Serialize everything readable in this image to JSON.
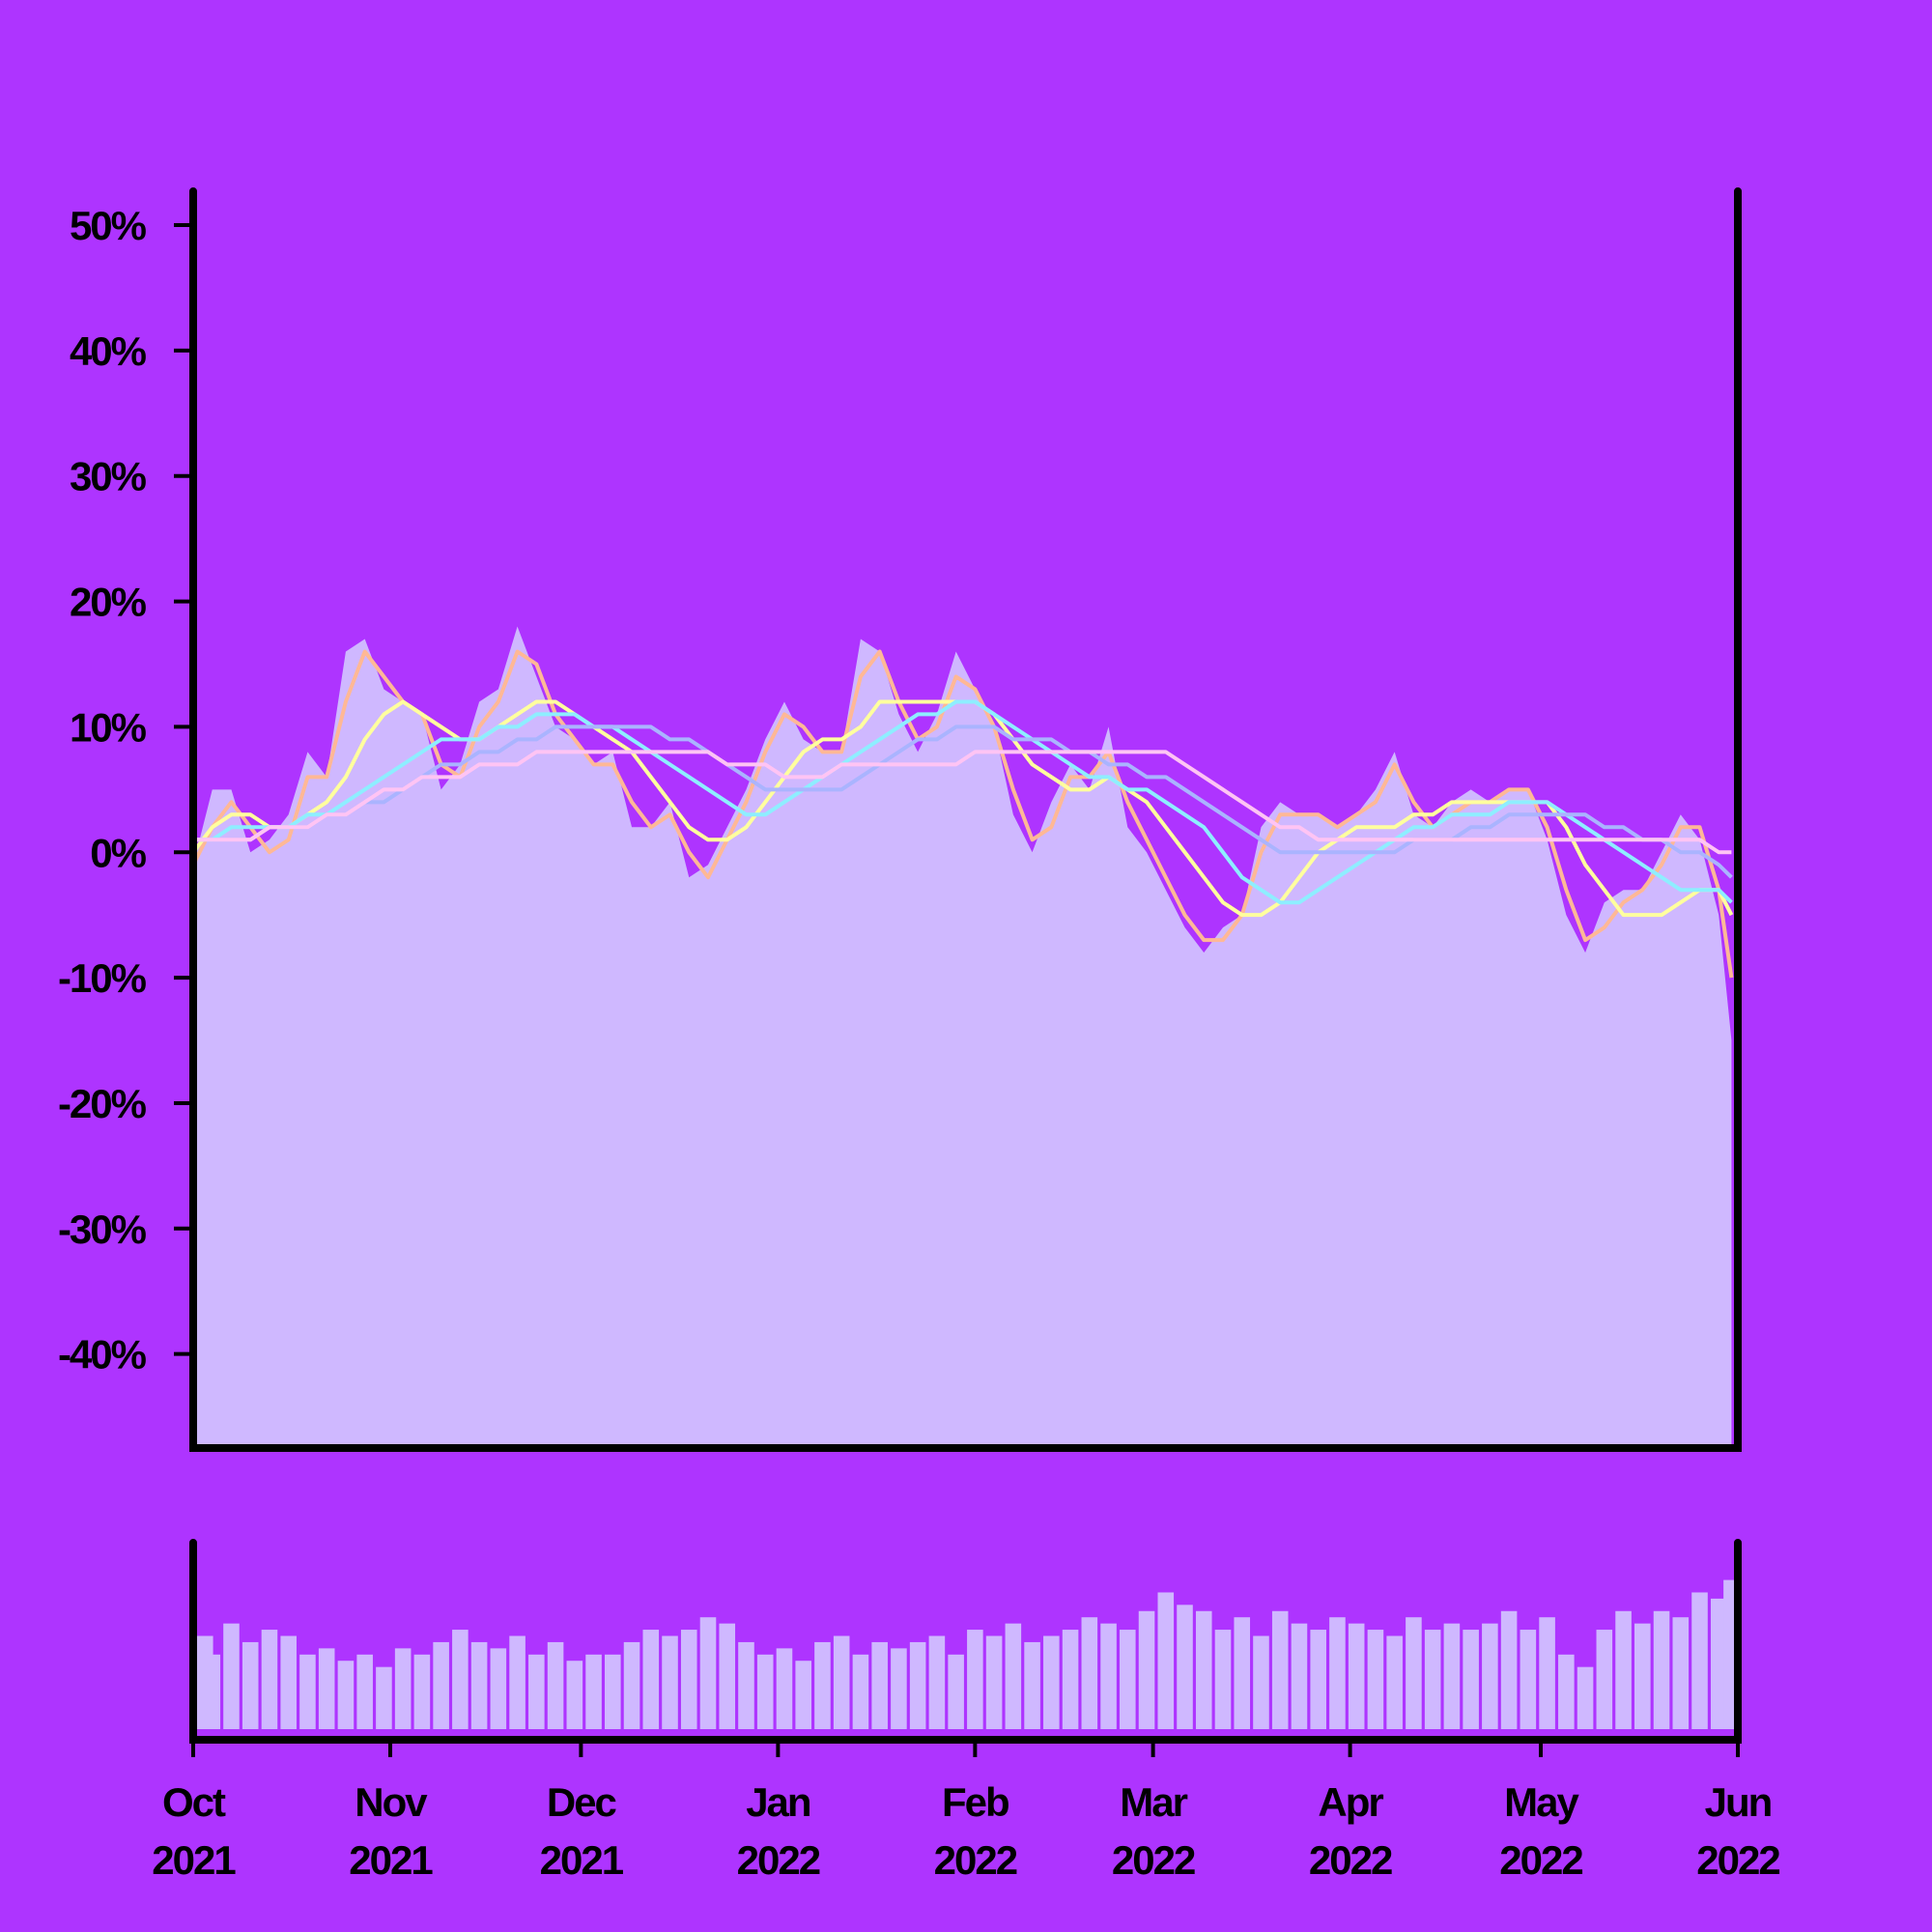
{
  "chart_data": [
    {
      "type": "area",
      "x": [
        0,
        3,
        6,
        9,
        12,
        15,
        18,
        21,
        24,
        27,
        30,
        33,
        36,
        39,
        42,
        45,
        48,
        51,
        54,
        57,
        60,
        63,
        66,
        69,
        72,
        75,
        78,
        81,
        84,
        87,
        90,
        93,
        96,
        99,
        102,
        105,
        108,
        111,
        114,
        117,
        120,
        123,
        126,
        129,
        132,
        135,
        138,
        141,
        144,
        147,
        150,
        153,
        156,
        159,
        162,
        165,
        168,
        171,
        174,
        177,
        180,
        183,
        186,
        189,
        192,
        195,
        198,
        201,
        204,
        207,
        210,
        213,
        216,
        219,
        222,
        225,
        228,
        231,
        234,
        237,
        240,
        242
      ],
      "values": [
        -1,
        5,
        5,
        0,
        1,
        3,
        8,
        6,
        16,
        17,
        13,
        12,
        11,
        5,
        7,
        12,
        13,
        18,
        14,
        10,
        9,
        7,
        8,
        2,
        2,
        4,
        -2,
        -1,
        2,
        5,
        9,
        12,
        9,
        8,
        8,
        17,
        16,
        11,
        8,
        11,
        16,
        13,
        10,
        3,
        0,
        4,
        7,
        5,
        10,
        2,
        0,
        -3,
        -6,
        -8,
        -6,
        -5,
        2,
        4,
        3,
        3,
        2,
        3,
        5,
        8,
        3,
        2,
        4,
        5,
        4,
        5,
        5,
        1,
        -5,
        -8,
        -4,
        -3,
        -3,
        0,
        3,
        1,
        -5,
        -15
      ],
      "color": "#cfb8ff",
      "series": [
        {
          "color": "#ffb896",
          "values": [
            -1,
            2,
            4,
            2,
            0,
            1,
            6,
            6,
            12,
            16,
            14,
            12,
            11,
            7,
            6,
            10,
            12,
            16,
            15,
            11,
            9,
            7,
            7,
            4,
            2,
            3,
            0,
            -2,
            1,
            4,
            8,
            11,
            10,
            8,
            8,
            14,
            16,
            12,
            9,
            10,
            14,
            13,
            10,
            5,
            1,
            2,
            6,
            6,
            8,
            4,
            1,
            -2,
            -5,
            -7,
            -7,
            -5,
            0,
            3,
            3,
            3,
            2,
            3,
            4,
            7,
            4,
            2,
            3,
            4,
            4,
            5,
            5,
            2,
            -3,
            -7,
            -6,
            -4,
            -3,
            -1,
            2,
            2,
            -3,
            -10
          ]
        },
        {
          "color": "#ffff9e",
          "values": [
            0,
            2,
            3,
            3,
            2,
            2,
            3,
            4,
            6,
            9,
            11,
            12,
            11,
            10,
            9,
            9,
            10,
            11,
            12,
            12,
            11,
            10,
            9,
            8,
            6,
            4,
            2,
            1,
            1,
            2,
            4,
            6,
            8,
            9,
            9,
            10,
            12,
            12,
            12,
            12,
            12,
            12,
            11,
            9,
            7,
            6,
            5,
            5,
            6,
            5,
            4,
            2,
            0,
            -2,
            -4,
            -5,
            -5,
            -4,
            -2,
            0,
            1,
            2,
            2,
            2,
            3,
            3,
            4,
            4,
            4,
            4,
            4,
            4,
            2,
            -1,
            -3,
            -5,
            -5,
            -5,
            -4,
            -3,
            -3,
            -5
          ]
        },
        {
          "color": "#8eeeff",
          "values": [
            1,
            1,
            2,
            2,
            2,
            2,
            3,
            3,
            4,
            5,
            6,
            7,
            8,
            9,
            9,
            9,
            10,
            10,
            11,
            11,
            11,
            10,
            10,
            9,
            8,
            7,
            6,
            5,
            4,
            3,
            3,
            4,
            5,
            6,
            7,
            8,
            9,
            10,
            11,
            11,
            12,
            12,
            11,
            10,
            9,
            8,
            7,
            6,
            6,
            5,
            5,
            4,
            3,
            2,
            0,
            -2,
            -3,
            -4,
            -4,
            -3,
            -2,
            -1,
            0,
            1,
            2,
            2,
            3,
            3,
            3,
            4,
            4,
            4,
            3,
            2,
            1,
            0,
            -1,
            -2,
            -3,
            -3,
            -3,
            -4
          ]
        },
        {
          "color": "#aab4ff",
          "values": [
            1,
            1,
            1,
            1,
            2,
            2,
            2,
            3,
            3,
            4,
            4,
            5,
            6,
            7,
            7,
            8,
            8,
            9,
            9,
            10,
            10,
            10,
            10,
            10,
            10,
            9,
            9,
            8,
            7,
            6,
            5,
            5,
            5,
            5,
            5,
            6,
            7,
            8,
            9,
            9,
            10,
            10,
            10,
            9,
            9,
            9,
            8,
            8,
            7,
            7,
            6,
            6,
            5,
            4,
            3,
            2,
            1,
            0,
            0,
            0,
            0,
            0,
            0,
            0,
            1,
            1,
            1,
            2,
            2,
            3,
            3,
            3,
            3,
            3,
            2,
            2,
            1,
            1,
            0,
            0,
            -1,
            -2
          ]
        },
        {
          "color": "#ffc4f4",
          "values": [
            1,
            1,
            1,
            1,
            2,
            2,
            2,
            3,
            3,
            4,
            5,
            5,
            6,
            6,
            6,
            7,
            7,
            7,
            8,
            8,
            8,
            8,
            8,
            8,
            8,
            8,
            8,
            8,
            7,
            7,
            7,
            6,
            6,
            6,
            7,
            7,
            7,
            7,
            7,
            7,
            7,
            8,
            8,
            8,
            8,
            8,
            8,
            8,
            8,
            8,
            8,
            8,
            7,
            6,
            5,
            4,
            3,
            2,
            2,
            1,
            1,
            1,
            1,
            1,
            1,
            1,
            1,
            1,
            1,
            1,
            1,
            1,
            1,
            1,
            1,
            1,
            1,
            1,
            1,
            1,
            0,
            0
          ]
        }
      ],
      "xlim": [
        0,
        243
      ],
      "ylim": [
        -47.5,
        52.7
      ],
      "yticks": [
        {
          "value": 50,
          "label": "50%"
        },
        {
          "value": 40,
          "label": "40%"
        },
        {
          "value": 30,
          "label": "30%"
        },
        {
          "value": 20,
          "label": "20%"
        },
        {
          "value": 10,
          "label": "10%"
        },
        {
          "value": 0,
          "label": "0%"
        },
        {
          "value": -10,
          "label": "-10%"
        },
        {
          "value": -20,
          "label": "-20%"
        },
        {
          "value": -30,
          "label": "-30%"
        },
        {
          "value": -40,
          "label": "-40%"
        }
      ]
    },
    {
      "type": "bar",
      "x": [
        0,
        3,
        6,
        9,
        12,
        15,
        18,
        21,
        24,
        27,
        30,
        33,
        36,
        39,
        42,
        45,
        48,
        51,
        54,
        57,
        60,
        63,
        66,
        69,
        72,
        75,
        78,
        81,
        84,
        87,
        90,
        93,
        96,
        99,
        102,
        105,
        108,
        111,
        114,
        117,
        120,
        123,
        126,
        129,
        132,
        135,
        138,
        141,
        144,
        147,
        150,
        153,
        156,
        159,
        162,
        165,
        168,
        171,
        174,
        177,
        180,
        183,
        186,
        189,
        192,
        195,
        198,
        201,
        204,
        207,
        210,
        213,
        216,
        219,
        222,
        225,
        228,
        231,
        234,
        237,
        240,
        242
      ],
      "values": [
        75,
        60,
        85,
        70,
        80,
        75,
        60,
        65,
        55,
        60,
        50,
        65,
        60,
        70,
        80,
        70,
        65,
        75,
        60,
        70,
        55,
        60,
        60,
        70,
        80,
        75,
        80,
        90,
        85,
        70,
        60,
        65,
        55,
        70,
        75,
        60,
        70,
        65,
        70,
        75,
        60,
        80,
        75,
        85,
        70,
        75,
        80,
        90,
        85,
        80,
        95,
        110,
        100,
        95,
        80,
        90,
        75,
        95,
        85,
        80,
        90,
        85,
        80,
        75,
        90,
        80,
        85,
        80,
        85,
        95,
        80,
        90,
        60,
        50,
        80,
        95,
        85,
        95,
        90,
        110,
        105,
        120
      ],
      "color": "#cfb8ff",
      "xlim": [
        0,
        243
      ],
      "ylim": [
        0,
        150
      ],
      "xticks": [
        {
          "value": 0,
          "label": "Oct 2021"
        },
        {
          "value": 31,
          "label": "Nov 2021"
        },
        {
          "value": 61,
          "label": "Dec 2021"
        },
        {
          "value": 92,
          "label": "Jan 2022"
        },
        {
          "value": 123,
          "label": "Feb 2022"
        },
        {
          "value": 151,
          "label": "Mar 2022"
        },
        {
          "value": 182,
          "label": "Apr 2022"
        },
        {
          "value": 212,
          "label": "May 2022"
        },
        {
          "value": 243,
          "label": "Jun 2022"
        }
      ]
    }
  ]
}
